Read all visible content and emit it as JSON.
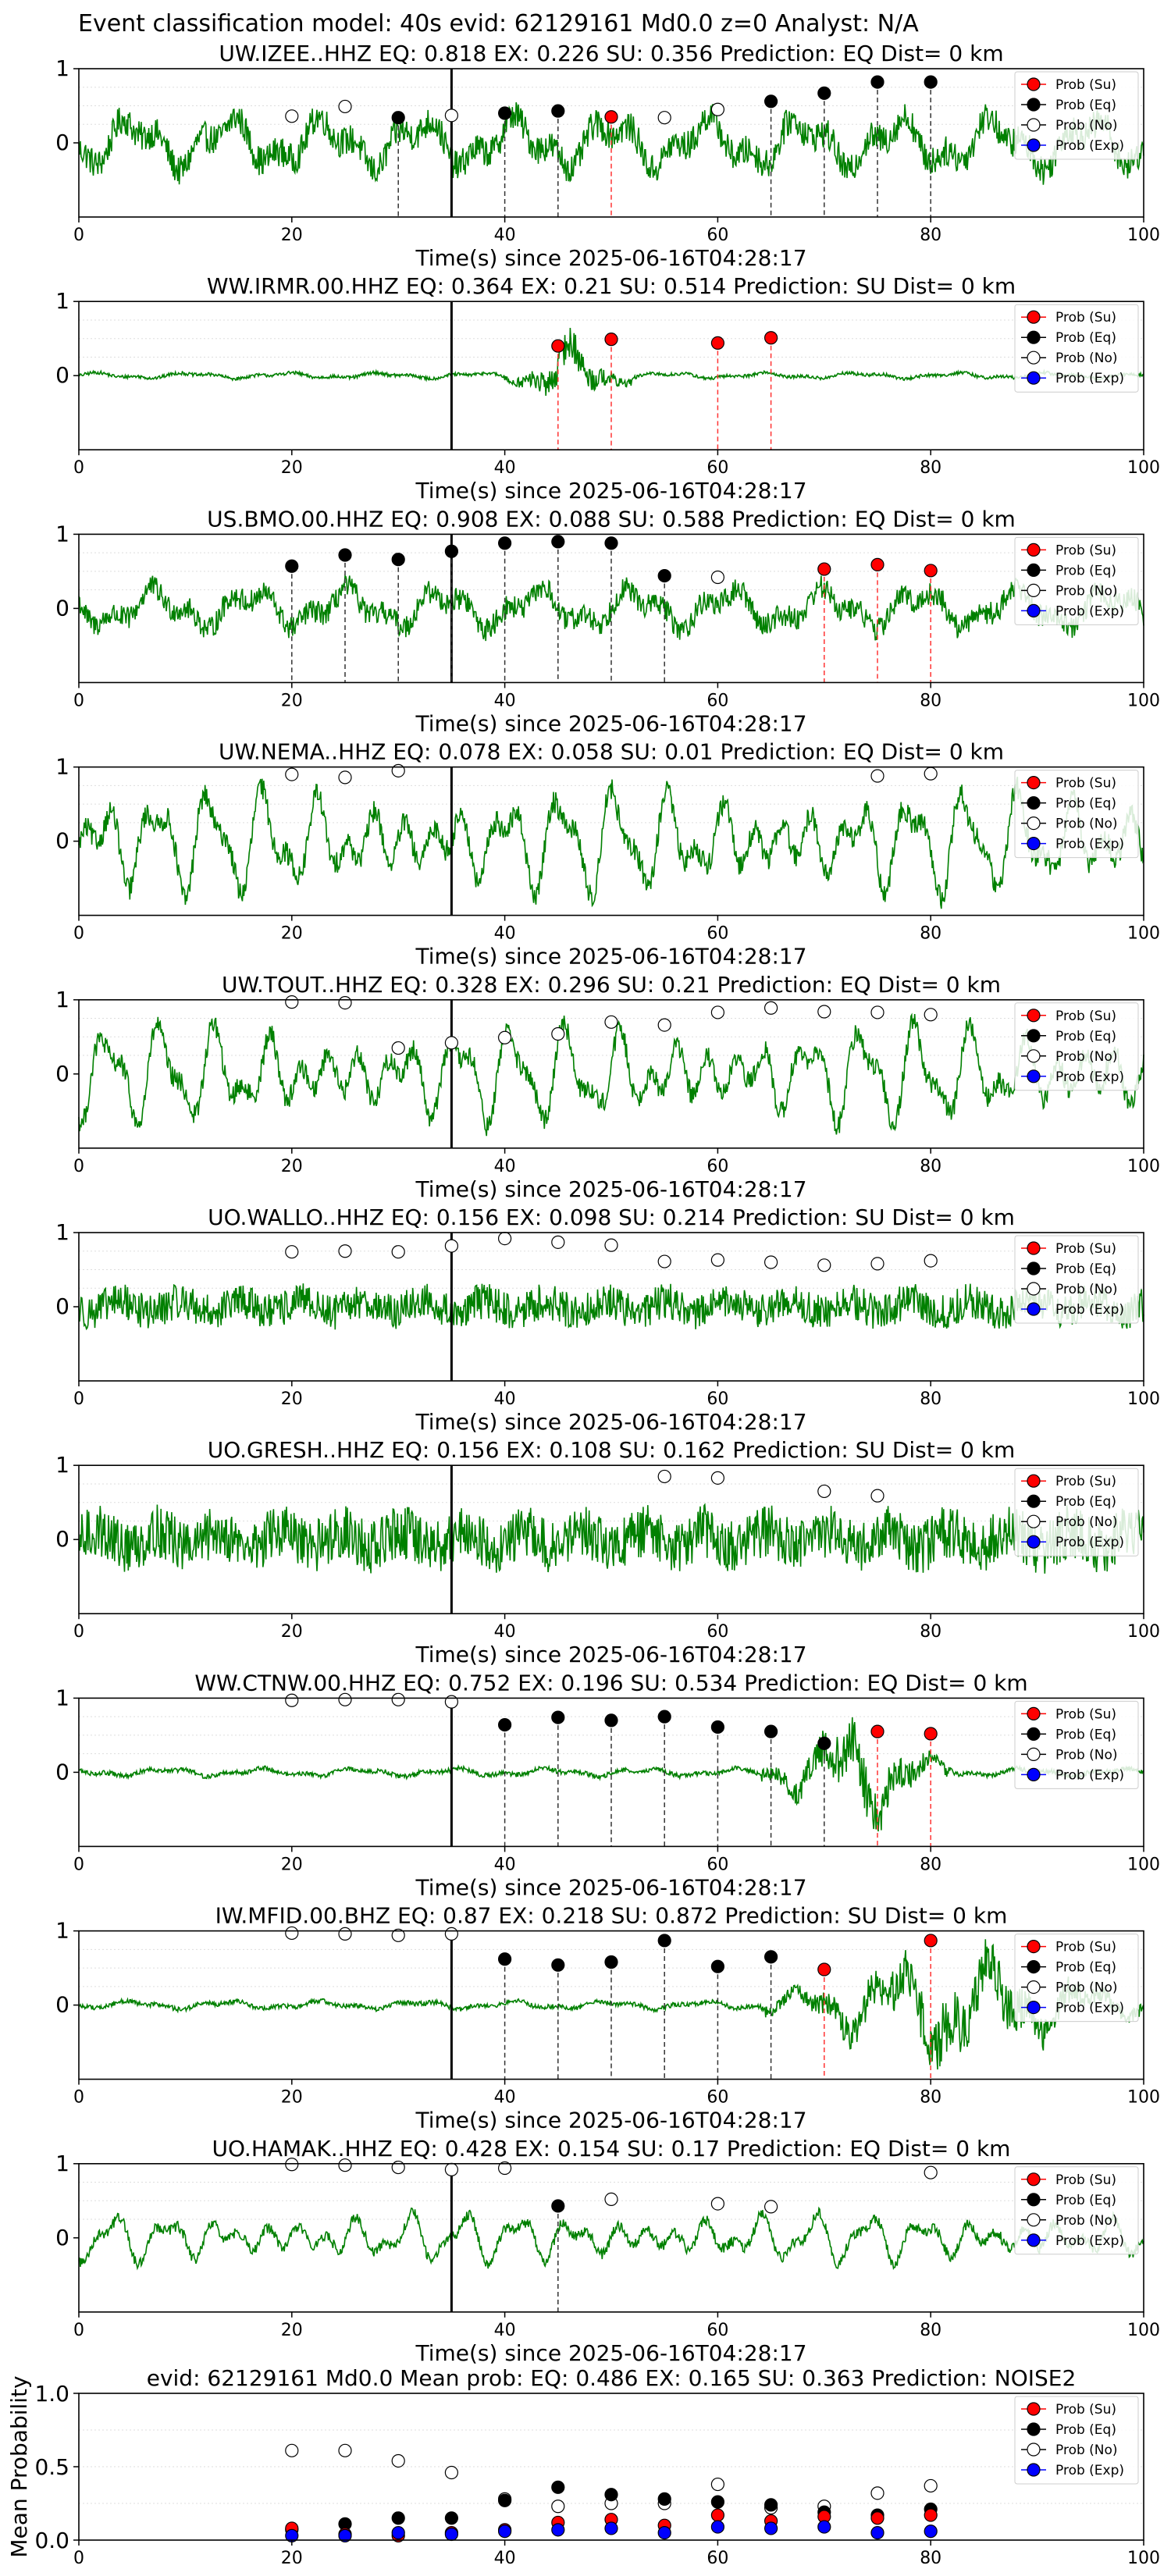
{
  "figure": {
    "suptitle": "Event classification model: 40s evid: 62129161 Md0.0 z=0 Analyst: N/A"
  },
  "legend_labels": [
    "Prob (Su)",
    "Prob (Eq)",
    "Prob (No)",
    "Prob (Exp)"
  ],
  "colors": {
    "waveform": "#008000",
    "su": "#ff0000",
    "eq": "#000000",
    "no": "#ffffff",
    "exp": "#0000ff",
    "arrival_line": "#000000"
  },
  "chart_data": [
    {
      "type": "line",
      "title": "UW.IZEE..HHZ   EQ: 0.818  EX: 0.226  SU: 0.356   Prediction: EQ    Dist= 0 km",
      "xlabel": "Time(s) since 2025-06-16T04:28:17",
      "xlim": [
        0,
        100
      ],
      "ylim": [
        -1,
        1
      ],
      "xticks": [
        0,
        20,
        40,
        60,
        80,
        100
      ],
      "yticks": [
        1,
        0
      ],
      "arrival_time": 35,
      "waveform": {
        "amplitude": 0.45,
        "character": "irregular"
      },
      "points": [
        {
          "x": 20,
          "y": 0.36,
          "cls": "no"
        },
        {
          "x": 25,
          "y": 0.49,
          "cls": "no"
        },
        {
          "x": 30,
          "y": 0.34,
          "cls": "eq"
        },
        {
          "x": 35,
          "y": 0.37,
          "cls": "no"
        },
        {
          "x": 40,
          "y": 0.4,
          "cls": "eq"
        },
        {
          "x": 45,
          "y": 0.43,
          "cls": "eq"
        },
        {
          "x": 50,
          "y": 0.35,
          "cls": "su"
        },
        {
          "x": 55,
          "y": 0.34,
          "cls": "no"
        },
        {
          "x": 60,
          "y": 0.45,
          "cls": "no"
        },
        {
          "x": 65,
          "y": 0.56,
          "cls": "eq"
        },
        {
          "x": 70,
          "y": 0.67,
          "cls": "eq"
        },
        {
          "x": 75,
          "y": 0.82,
          "cls": "eq"
        },
        {
          "x": 80,
          "y": 0.82,
          "cls": "eq"
        }
      ]
    },
    {
      "type": "line",
      "title": "WW.IRMR.00.HHZ   EQ: 0.364  EX: 0.21  SU: 0.514   Prediction: SU    Dist= 0 km",
      "xlabel": "Time(s) since 2025-06-16T04:28:17",
      "xlim": [
        0,
        100
      ],
      "ylim": [
        -1,
        1
      ],
      "xticks": [
        0,
        20,
        40,
        60,
        80,
        100
      ],
      "yticks": [
        1,
        0
      ],
      "arrival_time": 35,
      "waveform": {
        "amplitude": 0.05,
        "character": "burst",
        "burst_start": 40,
        "burst_end": 52,
        "burst_amplitude": 0.5
      },
      "points": [
        {
          "x": 45,
          "y": 0.4,
          "cls": "su"
        },
        {
          "x": 50,
          "y": 0.49,
          "cls": "su"
        },
        {
          "x": 60,
          "y": 0.44,
          "cls": "su"
        },
        {
          "x": 65,
          "y": 0.51,
          "cls": "su"
        }
      ]
    },
    {
      "type": "line",
      "title": "US.BMO.00.HHZ   EQ: 0.908  EX: 0.088  SU: 0.588   Prediction: EQ    Dist= 0 km",
      "xlabel": "Time(s) since 2025-06-16T04:28:17",
      "xlim": [
        0,
        100
      ],
      "ylim": [
        -1,
        1
      ],
      "xticks": [
        0,
        20,
        40,
        60,
        80,
        100
      ],
      "yticks": [
        1,
        0
      ],
      "arrival_time": 35,
      "waveform": {
        "amplitude": 0.35,
        "character": "irregular"
      },
      "points": [
        {
          "x": 20,
          "y": 0.57,
          "cls": "eq"
        },
        {
          "x": 25,
          "y": 0.72,
          "cls": "eq"
        },
        {
          "x": 30,
          "y": 0.66,
          "cls": "eq"
        },
        {
          "x": 35,
          "y": 0.77,
          "cls": "eq"
        },
        {
          "x": 40,
          "y": 0.88,
          "cls": "eq"
        },
        {
          "x": 45,
          "y": 0.9,
          "cls": "eq"
        },
        {
          "x": 50,
          "y": 0.88,
          "cls": "eq"
        },
        {
          "x": 55,
          "y": 0.44,
          "cls": "eq"
        },
        {
          "x": 60,
          "y": 0.42,
          "cls": "no"
        },
        {
          "x": 70,
          "y": 0.53,
          "cls": "su"
        },
        {
          "x": 75,
          "y": 0.59,
          "cls": "su"
        },
        {
          "x": 80,
          "y": 0.51,
          "cls": "su"
        }
      ]
    },
    {
      "type": "line",
      "title": "UW.NEMA..HHZ   EQ: 0.078  EX: 0.058  SU: 0.01   Prediction: EQ    Dist= 0 km",
      "xlabel": "Time(s) since 2025-06-16T04:28:17",
      "xlim": [
        0,
        100
      ],
      "ylim": [
        -1,
        1
      ],
      "xticks": [
        0,
        20,
        40,
        60,
        80,
        100
      ],
      "yticks": [
        1,
        0
      ],
      "arrival_time": 35,
      "waveform": {
        "amplitude": 0.75,
        "character": "oscillating"
      },
      "points": [
        {
          "x": 20,
          "y": 0.9,
          "cls": "no"
        },
        {
          "x": 25,
          "y": 0.86,
          "cls": "no"
        },
        {
          "x": 30,
          "y": 0.95,
          "cls": "no"
        },
        {
          "x": 75,
          "y": 0.88,
          "cls": "no"
        },
        {
          "x": 80,
          "y": 0.91,
          "cls": "no"
        }
      ]
    },
    {
      "type": "line",
      "title": "UW.TOUT..HHZ   EQ: 0.328  EX: 0.296  SU: 0.21   Prediction: EQ    Dist= 0 km",
      "xlabel": "Time(s) since 2025-06-16T04:28:17",
      "xlim": [
        0,
        100
      ],
      "ylim": [
        -1,
        1
      ],
      "xticks": [
        0,
        20,
        40,
        60,
        80,
        100
      ],
      "yticks": [
        1,
        0
      ],
      "arrival_time": 35,
      "waveform": {
        "amplitude": 0.7,
        "character": "oscillating"
      },
      "points": [
        {
          "x": 20,
          "y": 0.97,
          "cls": "no"
        },
        {
          "x": 25,
          "y": 0.96,
          "cls": "no"
        },
        {
          "x": 30,
          "y": 0.35,
          "cls": "no"
        },
        {
          "x": 35,
          "y": 0.42,
          "cls": "no"
        },
        {
          "x": 40,
          "y": 0.49,
          "cls": "no"
        },
        {
          "x": 45,
          "y": 0.54,
          "cls": "no"
        },
        {
          "x": 50,
          "y": 0.7,
          "cls": "no"
        },
        {
          "x": 55,
          "y": 0.66,
          "cls": "no"
        },
        {
          "x": 60,
          "y": 0.83,
          "cls": "no"
        },
        {
          "x": 65,
          "y": 0.89,
          "cls": "no"
        },
        {
          "x": 70,
          "y": 0.84,
          "cls": "no"
        },
        {
          "x": 75,
          "y": 0.83,
          "cls": "no"
        },
        {
          "x": 80,
          "y": 0.8,
          "cls": "no"
        }
      ]
    },
    {
      "type": "line",
      "title": "UO.WALLO..HHZ   EQ: 0.156  EX: 0.098  SU: 0.214   Prediction: SU    Dist= 0 km",
      "xlabel": "Time(s) since 2025-06-16T04:28:17",
      "xlim": [
        0,
        100
      ],
      "ylim": [
        -1,
        1
      ],
      "xticks": [
        0,
        20,
        40,
        60,
        80,
        100
      ],
      "yticks": [
        1,
        0
      ],
      "arrival_time": 35,
      "waveform": {
        "amplitude": 0.3,
        "character": "noisy"
      },
      "points": [
        {
          "x": 20,
          "y": 0.74,
          "cls": "no"
        },
        {
          "x": 25,
          "y": 0.75,
          "cls": "no"
        },
        {
          "x": 30,
          "y": 0.74,
          "cls": "no"
        },
        {
          "x": 35,
          "y": 0.82,
          "cls": "no"
        },
        {
          "x": 40,
          "y": 0.92,
          "cls": "no"
        },
        {
          "x": 45,
          "y": 0.87,
          "cls": "no"
        },
        {
          "x": 50,
          "y": 0.83,
          "cls": "no"
        },
        {
          "x": 55,
          "y": 0.61,
          "cls": "no"
        },
        {
          "x": 60,
          "y": 0.63,
          "cls": "no"
        },
        {
          "x": 65,
          "y": 0.6,
          "cls": "no"
        },
        {
          "x": 70,
          "y": 0.56,
          "cls": "no"
        },
        {
          "x": 75,
          "y": 0.58,
          "cls": "no"
        },
        {
          "x": 80,
          "y": 0.62,
          "cls": "no"
        }
      ]
    },
    {
      "type": "line",
      "title": "UO.GRESH..HHZ   EQ: 0.156  EX: 0.108  SU: 0.162   Prediction: SU    Dist= 0 km",
      "xlabel": "Time(s) since 2025-06-16T04:28:17",
      "xlim": [
        0,
        100
      ],
      "ylim": [
        -1,
        1
      ],
      "xticks": [
        0,
        20,
        40,
        60,
        80,
        100
      ],
      "yticks": [
        1,
        0
      ],
      "arrival_time": 35,
      "waveform": {
        "amplitude": 0.45,
        "character": "noisy"
      },
      "points": [
        {
          "x": 55,
          "y": 0.85,
          "cls": "no"
        },
        {
          "x": 60,
          "y": 0.83,
          "cls": "no"
        },
        {
          "x": 70,
          "y": 0.65,
          "cls": "no"
        },
        {
          "x": 75,
          "y": 0.59,
          "cls": "no"
        }
      ]
    },
    {
      "type": "line",
      "title": "WW.CTNW.00.HHZ   EQ: 0.752  EX: 0.196  SU: 0.534   Prediction: EQ    Dist= 0 km",
      "xlabel": "Time(s) since 2025-06-16T04:28:17",
      "xlim": [
        0,
        100
      ],
      "ylim": [
        -1,
        1
      ],
      "xticks": [
        0,
        20,
        40,
        60,
        80,
        100
      ],
      "yticks": [
        1,
        0
      ],
      "arrival_time": 35,
      "waveform": {
        "amplitude": 0.07,
        "character": "burst",
        "burst_start": 64,
        "burst_end": 82,
        "burst_amplitude": 0.8
      },
      "points": [
        {
          "x": 20,
          "y": 0.97,
          "cls": "no"
        },
        {
          "x": 25,
          "y": 0.98,
          "cls": "no"
        },
        {
          "x": 30,
          "y": 0.98,
          "cls": "no"
        },
        {
          "x": 35,
          "y": 0.95,
          "cls": "no"
        },
        {
          "x": 40,
          "y": 0.64,
          "cls": "eq"
        },
        {
          "x": 45,
          "y": 0.74,
          "cls": "eq"
        },
        {
          "x": 50,
          "y": 0.7,
          "cls": "eq"
        },
        {
          "x": 55,
          "y": 0.75,
          "cls": "eq"
        },
        {
          "x": 60,
          "y": 0.61,
          "cls": "eq"
        },
        {
          "x": 65,
          "y": 0.55,
          "cls": "eq"
        },
        {
          "x": 70,
          "y": 0.39,
          "cls": "eq"
        },
        {
          "x": 75,
          "y": 0.55,
          "cls": "su"
        },
        {
          "x": 80,
          "y": 0.52,
          "cls": "su"
        }
      ]
    },
    {
      "type": "line",
      "title": "IW.MFID.00.BHZ   EQ: 0.87  EX: 0.218  SU: 0.872   Prediction: SU    Dist= 0 km",
      "xlabel": "Time(s) since 2025-06-16T04:28:17",
      "xlim": [
        0,
        100
      ],
      "ylim": [
        -1,
        1
      ],
      "xticks": [
        0,
        20,
        40,
        60,
        80,
        100
      ],
      "yticks": [
        1,
        0
      ],
      "arrival_time": 35,
      "waveform": {
        "amplitude": 0.07,
        "character": "burst",
        "burst_start": 64,
        "burst_end": 100,
        "burst_amplitude": 0.85
      },
      "points": [
        {
          "x": 20,
          "y": 0.97,
          "cls": "no"
        },
        {
          "x": 25,
          "y": 0.96,
          "cls": "no"
        },
        {
          "x": 30,
          "y": 0.94,
          "cls": "no"
        },
        {
          "x": 35,
          "y": 0.96,
          "cls": "no"
        },
        {
          "x": 40,
          "y": 0.62,
          "cls": "eq"
        },
        {
          "x": 45,
          "y": 0.54,
          "cls": "eq"
        },
        {
          "x": 50,
          "y": 0.58,
          "cls": "eq"
        },
        {
          "x": 55,
          "y": 0.87,
          "cls": "eq"
        },
        {
          "x": 60,
          "y": 0.52,
          "cls": "eq"
        },
        {
          "x": 65,
          "y": 0.65,
          "cls": "eq"
        },
        {
          "x": 70,
          "y": 0.48,
          "cls": "su"
        },
        {
          "x": 80,
          "y": 0.87,
          "cls": "su"
        }
      ]
    },
    {
      "type": "line",
      "title": "UO.HAMAK..HHZ   EQ: 0.428  EX: 0.154  SU: 0.17   Prediction: EQ    Dist= 0 km",
      "xlabel": "Time(s) since 2025-06-16T04:28:17",
      "xlim": [
        0,
        100
      ],
      "ylim": [
        -1,
        1
      ],
      "xticks": [
        0,
        20,
        40,
        60,
        80,
        100
      ],
      "yticks": [
        1,
        0
      ],
      "arrival_time": 35,
      "waveform": {
        "amplitude": 0.35,
        "character": "oscillating"
      },
      "points": [
        {
          "x": 20,
          "y": 0.99,
          "cls": "no"
        },
        {
          "x": 25,
          "y": 0.98,
          "cls": "no"
        },
        {
          "x": 30,
          "y": 0.95,
          "cls": "no"
        },
        {
          "x": 35,
          "y": 0.92,
          "cls": "no"
        },
        {
          "x": 40,
          "y": 0.94,
          "cls": "no"
        },
        {
          "x": 45,
          "y": 0.43,
          "cls": "eq"
        },
        {
          "x": 50,
          "y": 0.52,
          "cls": "no"
        },
        {
          "x": 60,
          "y": 0.46,
          "cls": "no"
        },
        {
          "x": 65,
          "y": 0.42,
          "cls": "no"
        },
        {
          "x": 80,
          "y": 0.88,
          "cls": "no"
        }
      ]
    },
    {
      "type": "scatter",
      "title": "evid: 62129161  Md0.0   Mean prob:   EQ: 0.486  EX: 0.165  SU: 0.363   Prediction: NOISE2",
      "ylabel": "Mean Probability",
      "xlim": [
        0,
        100
      ],
      "ylim": [
        0,
        1.0
      ],
      "xticks": [
        0,
        20,
        40,
        60,
        80,
        100
      ],
      "yticks": [
        0.0,
        0.5,
        1.0
      ],
      "ytick_labels": [
        "0.0",
        "0.5",
        "1.0"
      ],
      "series": [
        {
          "name": "Prob (No)",
          "cls": "no",
          "x": [
            20,
            25,
            30,
            35,
            40,
            45,
            50,
            55,
            60,
            65,
            70,
            75,
            80
          ],
          "y": [
            0.61,
            0.61,
            0.54,
            0.46,
            0.28,
            0.23,
            0.25,
            0.25,
            0.38,
            0.22,
            0.23,
            0.32,
            0.37
          ]
        },
        {
          "name": "Prob (Eq)",
          "cls": "eq",
          "x": [
            20,
            25,
            30,
            35,
            40,
            45,
            50,
            55,
            60,
            65,
            70,
            75,
            80
          ],
          "y": [
            0.07,
            0.11,
            0.15,
            0.15,
            0.27,
            0.36,
            0.31,
            0.28,
            0.26,
            0.24,
            0.19,
            0.17,
            0.21
          ]
        },
        {
          "name": "Prob (Su)",
          "cls": "su",
          "x": [
            20,
            25,
            30,
            35,
            40,
            45,
            50,
            55,
            60,
            65,
            70,
            75,
            80
          ],
          "y": [
            0.08,
            0.04,
            0.03,
            0.05,
            0.07,
            0.12,
            0.14,
            0.1,
            0.17,
            0.13,
            0.16,
            0.15,
            0.17
          ]
        },
        {
          "name": "Prob (Exp)",
          "cls": "exp",
          "x": [
            20,
            25,
            30,
            35,
            40,
            45,
            50,
            55,
            60,
            65,
            70,
            75,
            80
          ],
          "y": [
            0.03,
            0.03,
            0.05,
            0.04,
            0.06,
            0.07,
            0.08,
            0.05,
            0.09,
            0.08,
            0.09,
            0.05,
            0.06
          ]
        }
      ]
    }
  ]
}
